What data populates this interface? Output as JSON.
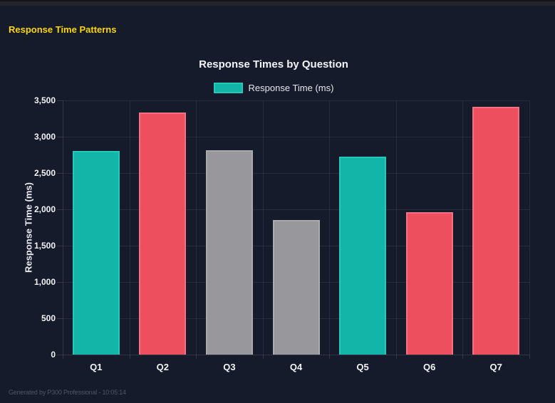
{
  "page": {
    "heading": "Response Time Patterns",
    "footer": "Generated by P300 Professional - 10:05:14"
  },
  "chart_data": {
    "type": "bar",
    "title": "Response Times by Question",
    "ylabel": "Response Time (ms)",
    "legend": {
      "label": "Response Time (ms)",
      "color": "teal",
      "position": "top"
    },
    "categories": [
      "Q1",
      "Q2",
      "Q3",
      "Q4",
      "Q5",
      "Q6",
      "Q7"
    ],
    "values": [
      2800,
      3330,
      2810,
      1850,
      2730,
      1960,
      3410
    ],
    "bar_colors": [
      "teal",
      "red",
      "gray",
      "gray",
      "teal",
      "red",
      "red"
    ],
    "colors": {
      "teal": {
        "fill": "#12b5a7",
        "border": "#23c9ba"
      },
      "red": {
        "fill": "#ee4f5f",
        "border": "#f37181"
      },
      "gray": {
        "fill": "#98979b",
        "border": "#aaa9ae"
      }
    },
    "ylim": [
      0,
      3500
    ],
    "ytick_step": 500,
    "grid": true
  }
}
